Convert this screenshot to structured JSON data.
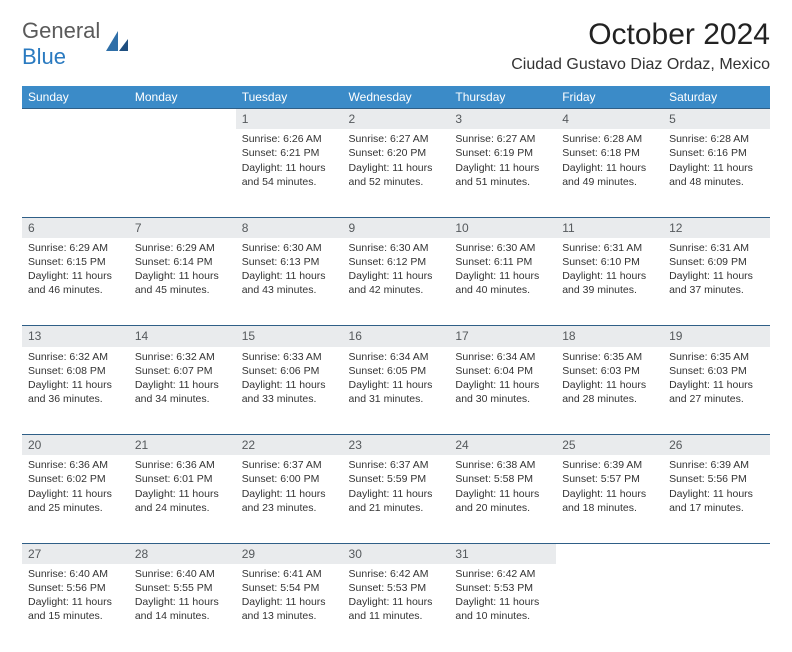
{
  "brand": {
    "general": "General",
    "blue": "Blue"
  },
  "header": {
    "month_title": "October 2024",
    "location": "Ciudad Gustavo Diaz Ordaz, Mexico"
  },
  "colors": {
    "header_bg": "#3b8bc8",
    "header_text": "#ffffff",
    "daynum_bg": "#e9ebed",
    "row_divider": "#2f5f87",
    "body_text": "#333333",
    "logo_gray": "#5a5a5a",
    "logo_blue": "#2a7ac0"
  },
  "weekdays": [
    "Sunday",
    "Monday",
    "Tuesday",
    "Wednesday",
    "Thursday",
    "Friday",
    "Saturday"
  ],
  "weeks": [
    [
      null,
      null,
      {
        "n": "1",
        "sr": "Sunrise: 6:26 AM",
        "ss": "Sunset: 6:21 PM",
        "d1": "Daylight: 11 hours",
        "d2": "and 54 minutes."
      },
      {
        "n": "2",
        "sr": "Sunrise: 6:27 AM",
        "ss": "Sunset: 6:20 PM",
        "d1": "Daylight: 11 hours",
        "d2": "and 52 minutes."
      },
      {
        "n": "3",
        "sr": "Sunrise: 6:27 AM",
        "ss": "Sunset: 6:19 PM",
        "d1": "Daylight: 11 hours",
        "d2": "and 51 minutes."
      },
      {
        "n": "4",
        "sr": "Sunrise: 6:28 AM",
        "ss": "Sunset: 6:18 PM",
        "d1": "Daylight: 11 hours",
        "d2": "and 49 minutes."
      },
      {
        "n": "5",
        "sr": "Sunrise: 6:28 AM",
        "ss": "Sunset: 6:16 PM",
        "d1": "Daylight: 11 hours",
        "d2": "and 48 minutes."
      }
    ],
    [
      {
        "n": "6",
        "sr": "Sunrise: 6:29 AM",
        "ss": "Sunset: 6:15 PM",
        "d1": "Daylight: 11 hours",
        "d2": "and 46 minutes."
      },
      {
        "n": "7",
        "sr": "Sunrise: 6:29 AM",
        "ss": "Sunset: 6:14 PM",
        "d1": "Daylight: 11 hours",
        "d2": "and 45 minutes."
      },
      {
        "n": "8",
        "sr": "Sunrise: 6:30 AM",
        "ss": "Sunset: 6:13 PM",
        "d1": "Daylight: 11 hours",
        "d2": "and 43 minutes."
      },
      {
        "n": "9",
        "sr": "Sunrise: 6:30 AM",
        "ss": "Sunset: 6:12 PM",
        "d1": "Daylight: 11 hours",
        "d2": "and 42 minutes."
      },
      {
        "n": "10",
        "sr": "Sunrise: 6:30 AM",
        "ss": "Sunset: 6:11 PM",
        "d1": "Daylight: 11 hours",
        "d2": "and 40 minutes."
      },
      {
        "n": "11",
        "sr": "Sunrise: 6:31 AM",
        "ss": "Sunset: 6:10 PM",
        "d1": "Daylight: 11 hours",
        "d2": "and 39 minutes."
      },
      {
        "n": "12",
        "sr": "Sunrise: 6:31 AM",
        "ss": "Sunset: 6:09 PM",
        "d1": "Daylight: 11 hours",
        "d2": "and 37 minutes."
      }
    ],
    [
      {
        "n": "13",
        "sr": "Sunrise: 6:32 AM",
        "ss": "Sunset: 6:08 PM",
        "d1": "Daylight: 11 hours",
        "d2": "and 36 minutes."
      },
      {
        "n": "14",
        "sr": "Sunrise: 6:32 AM",
        "ss": "Sunset: 6:07 PM",
        "d1": "Daylight: 11 hours",
        "d2": "and 34 minutes."
      },
      {
        "n": "15",
        "sr": "Sunrise: 6:33 AM",
        "ss": "Sunset: 6:06 PM",
        "d1": "Daylight: 11 hours",
        "d2": "and 33 minutes."
      },
      {
        "n": "16",
        "sr": "Sunrise: 6:34 AM",
        "ss": "Sunset: 6:05 PM",
        "d1": "Daylight: 11 hours",
        "d2": "and 31 minutes."
      },
      {
        "n": "17",
        "sr": "Sunrise: 6:34 AM",
        "ss": "Sunset: 6:04 PM",
        "d1": "Daylight: 11 hours",
        "d2": "and 30 minutes."
      },
      {
        "n": "18",
        "sr": "Sunrise: 6:35 AM",
        "ss": "Sunset: 6:03 PM",
        "d1": "Daylight: 11 hours",
        "d2": "and 28 minutes."
      },
      {
        "n": "19",
        "sr": "Sunrise: 6:35 AM",
        "ss": "Sunset: 6:03 PM",
        "d1": "Daylight: 11 hours",
        "d2": "and 27 minutes."
      }
    ],
    [
      {
        "n": "20",
        "sr": "Sunrise: 6:36 AM",
        "ss": "Sunset: 6:02 PM",
        "d1": "Daylight: 11 hours",
        "d2": "and 25 minutes."
      },
      {
        "n": "21",
        "sr": "Sunrise: 6:36 AM",
        "ss": "Sunset: 6:01 PM",
        "d1": "Daylight: 11 hours",
        "d2": "and 24 minutes."
      },
      {
        "n": "22",
        "sr": "Sunrise: 6:37 AM",
        "ss": "Sunset: 6:00 PM",
        "d1": "Daylight: 11 hours",
        "d2": "and 23 minutes."
      },
      {
        "n": "23",
        "sr": "Sunrise: 6:37 AM",
        "ss": "Sunset: 5:59 PM",
        "d1": "Daylight: 11 hours",
        "d2": "and 21 minutes."
      },
      {
        "n": "24",
        "sr": "Sunrise: 6:38 AM",
        "ss": "Sunset: 5:58 PM",
        "d1": "Daylight: 11 hours",
        "d2": "and 20 minutes."
      },
      {
        "n": "25",
        "sr": "Sunrise: 6:39 AM",
        "ss": "Sunset: 5:57 PM",
        "d1": "Daylight: 11 hours",
        "d2": "and 18 minutes."
      },
      {
        "n": "26",
        "sr": "Sunrise: 6:39 AM",
        "ss": "Sunset: 5:56 PM",
        "d1": "Daylight: 11 hours",
        "d2": "and 17 minutes."
      }
    ],
    [
      {
        "n": "27",
        "sr": "Sunrise: 6:40 AM",
        "ss": "Sunset: 5:56 PM",
        "d1": "Daylight: 11 hours",
        "d2": "and 15 minutes."
      },
      {
        "n": "28",
        "sr": "Sunrise: 6:40 AM",
        "ss": "Sunset: 5:55 PM",
        "d1": "Daylight: 11 hours",
        "d2": "and 14 minutes."
      },
      {
        "n": "29",
        "sr": "Sunrise: 6:41 AM",
        "ss": "Sunset: 5:54 PM",
        "d1": "Daylight: 11 hours",
        "d2": "and 13 minutes."
      },
      {
        "n": "30",
        "sr": "Sunrise: 6:42 AM",
        "ss": "Sunset: 5:53 PM",
        "d1": "Daylight: 11 hours",
        "d2": "and 11 minutes."
      },
      {
        "n": "31",
        "sr": "Sunrise: 6:42 AM",
        "ss": "Sunset: 5:53 PM",
        "d1": "Daylight: 11 hours",
        "d2": "and 10 minutes."
      },
      null,
      null
    ]
  ]
}
